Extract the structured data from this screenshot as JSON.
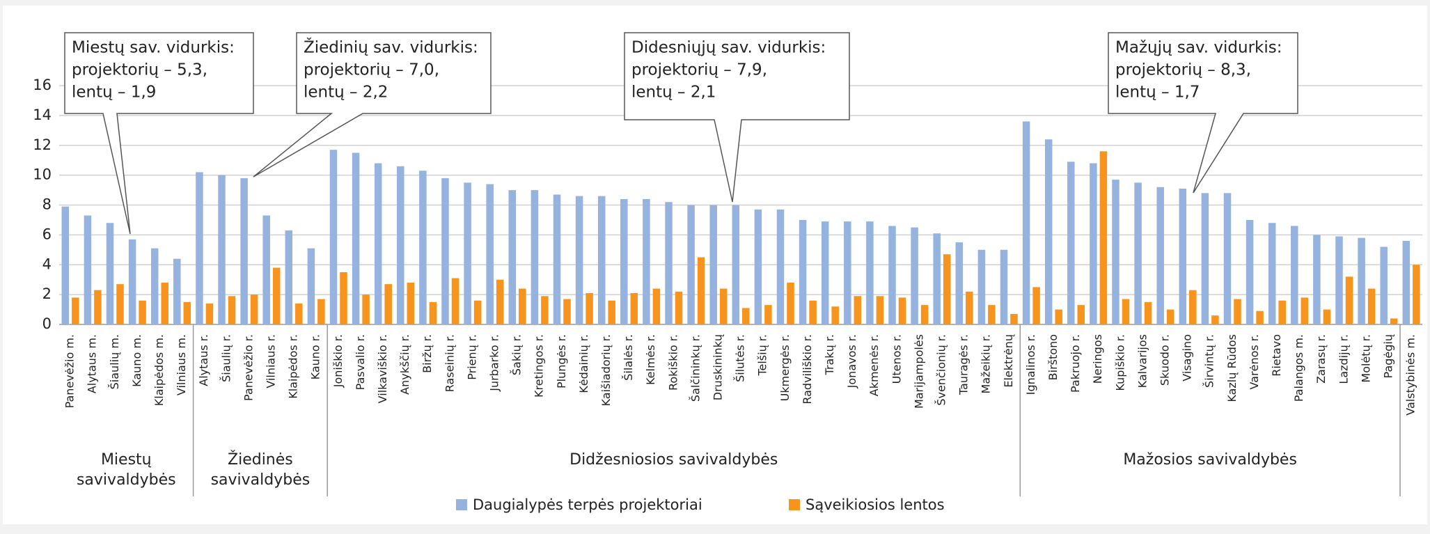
{
  "chart_data": {
    "type": "bar",
    "groups": [
      {
        "label": "Miestų savivaldybės",
        "categories": [
          "Panevėžio m.",
          "Alytaus m.",
          "Šiaulių m.",
          "Kauno m.",
          "Klaipėdos m.",
          "Vilniaus m."
        ]
      },
      {
        "label": "Žiedinės savivaldybės",
        "categories": [
          "Alytaus r.",
          "Šiaulių r.",
          "Panevėžio r.",
          "Vilniaus r.",
          "Klaipėdos r.",
          "Kauno r."
        ]
      },
      {
        "label": "Didžesniosios savivaldybės",
        "categories": [
          "Joniškio r.",
          "Pasvalio r.",
          "Vilkaviškio r.",
          "Anykščių r.",
          "Biržų r.",
          "Raseinių r.",
          "Prienų r.",
          "Jurbarko r.",
          "Šakių r.",
          "Kretingos r.",
          "Plungės r.",
          "Kėdainių r.",
          "Kaišiadorių r.",
          "Šilalės r.",
          "Kelmės r.",
          "Rokiškio r.",
          "Šalčininkų r.",
          "Druskininkų",
          "Šilutės r.",
          "Telšių r.",
          "Ukmergės r.",
          "Radviliškio r.",
          "Trakų r.",
          "Jonavos r.",
          "Akmenės r.",
          "Utenos r.",
          "Marijampolės",
          "Švenčionių r.",
          "Tauragės r.",
          "Mažeikių r.",
          "Elektrėnų"
        ]
      },
      {
        "label": "Mažosios savivaldybės",
        "categories": [
          "Ignalinos r.",
          "Birštono",
          "Pakruojo r.",
          "Neringos",
          "Kupiškio r.",
          "Kalvarijos",
          "Skuodo r.",
          "Visagino",
          "Širvintų r.",
          "Kazlų Rūdos",
          "Varėnos r.",
          "Rietavo",
          "Palangos m.",
          "Zarasų r.",
          "Lazdijų r.",
          "Molėtų r.",
          "Pagėgių"
        ]
      },
      {
        "label": null,
        "categories": [
          "Valstybinės m."
        ]
      }
    ],
    "series": [
      {
        "name": "Daugialypės terpės projektoriai",
        "color": "#95b3de",
        "values": [
          7.9,
          7.3,
          6.8,
          5.7,
          5.1,
          4.4,
          10.2,
          10.0,
          9.8,
          7.3,
          6.3,
          5.1,
          11.7,
          11.5,
          10.8,
          10.6,
          10.3,
          9.8,
          9.5,
          9.4,
          9.0,
          9.0,
          8.7,
          8.6,
          8.6,
          8.4,
          8.4,
          8.2,
          8.0,
          8.0,
          8.0,
          7.7,
          7.7,
          7.0,
          6.9,
          6.9,
          6.9,
          6.6,
          6.5,
          6.1,
          5.5,
          5.0,
          5.0,
          13.6,
          12.4,
          10.9,
          10.8,
          9.7,
          9.5,
          9.2,
          9.1,
          8.8,
          8.8,
          7.0,
          6.8,
          6.6,
          6.0,
          5.9,
          5.8,
          5.2,
          5.6
        ]
      },
      {
        "name": "Sąveikiosios lentos",
        "color": "#f7941d",
        "values": [
          1.8,
          2.3,
          2.7,
          1.6,
          2.8,
          1.5,
          1.4,
          1.9,
          2.0,
          3.8,
          1.4,
          1.7,
          3.5,
          2.0,
          2.7,
          2.8,
          1.5,
          3.1,
          1.6,
          3.0,
          2.4,
          1.9,
          1.7,
          2.1,
          1.6,
          2.1,
          2.4,
          2.2,
          4.5,
          2.4,
          1.1,
          1.3,
          2.8,
          1.6,
          1.2,
          1.9,
          1.9,
          1.8,
          1.3,
          4.7,
          2.2,
          1.3,
          0.7,
          2.5,
          1.0,
          1.3,
          11.6,
          1.7,
          1.5,
          1.0,
          2.3,
          0.6,
          1.7,
          0.9,
          1.6,
          1.8,
          1.0,
          3.2,
          2.4,
          0.4,
          4.0
        ]
      }
    ],
    "ylim": [
      0,
      16
    ],
    "yticks": [
      0,
      2,
      4,
      6,
      8,
      10,
      12,
      14,
      16
    ],
    "grid": true,
    "legend": "bottom",
    "annotations": [
      {
        "lines": [
          "Miestų sav. vidurkis:",
          "projektorių – 5,3,",
          "lentų – 1,9"
        ]
      },
      {
        "lines": [
          "Žiedinių sav. vidurkis:",
          "projektorių – 7,0,",
          "lentų – 2,2"
        ]
      },
      {
        "lines": [
          "Didesniųjų sav. vidurkis:",
          "projektorių – 7,9,",
          "lentų – 2,1"
        ]
      },
      {
        "lines": [
          "Mažųjų sav. vidurkis:",
          "projektorių – 8,3,",
          "lentų – 1,7"
        ]
      }
    ]
  }
}
